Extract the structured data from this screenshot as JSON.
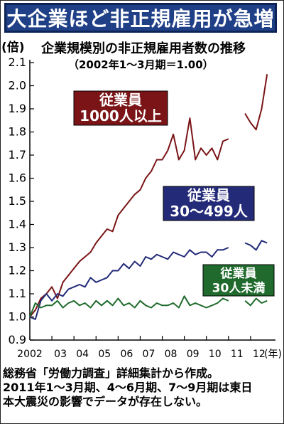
{
  "title": "大企業ほど非正規雇用が急増",
  "chart_data": {
    "type": "line",
    "title": "企業規模別の非正規雇用者数の推移",
    "subtitle": "（2002年1～3月期＝1.00）",
    "ylabel": "(倍)",
    "xlabel": "(年)",
    "ylim": [
      0.9,
      2.1
    ],
    "yticks": [
      "0.9",
      "1.0",
      "1.1",
      "1.2",
      "1.3",
      "1.4",
      "1.5",
      "1.6",
      "1.7",
      "1.8",
      "1.9",
      "2.0",
      "2.1"
    ],
    "xlim": [
      2002,
      2013
    ],
    "xtick_labels": [
      "2002",
      "03",
      "04",
      "05",
      "06",
      "07",
      "08",
      "09",
      "10",
      "11",
      "12"
    ],
    "xtick_values": [
      2002,
      2003,
      2004,
      2005,
      2006,
      2007,
      2008,
      2009,
      2010,
      2011,
      2012
    ],
    "grid": false,
    "series": [
      {
        "name": "従業員1000人以上",
        "label_lines": [
          "従業員",
          "1000人以上"
        ],
        "color": "#7a1416",
        "segments": [
          [
            [
              2002.0,
              1.0
            ],
            [
              2002.25,
              1.03
            ],
            [
              2002.5,
              1.08
            ],
            [
              2002.75,
              1.1
            ],
            [
              2003.0,
              1.13
            ],
            [
              2003.25,
              1.08
            ],
            [
              2003.5,
              1.15
            ],
            [
              2003.75,
              1.18
            ],
            [
              2004.0,
              1.21
            ],
            [
              2004.25,
              1.24
            ],
            [
              2004.5,
              1.26
            ],
            [
              2004.75,
              1.28
            ],
            [
              2005.0,
              1.32
            ],
            [
              2005.25,
              1.35
            ],
            [
              2005.5,
              1.38
            ],
            [
              2005.75,
              1.37
            ],
            [
              2006.0,
              1.44
            ],
            [
              2006.25,
              1.47
            ],
            [
              2006.5,
              1.5
            ],
            [
              2006.75,
              1.53
            ],
            [
              2007.0,
              1.55
            ],
            [
              2007.25,
              1.6
            ],
            [
              2007.5,
              1.63
            ],
            [
              2007.75,
              1.68
            ],
            [
              2008.0,
              1.68
            ],
            [
              2008.25,
              1.72
            ],
            [
              2008.5,
              1.79
            ],
            [
              2008.75,
              1.68
            ],
            [
              2009.0,
              1.72
            ],
            [
              2009.25,
              1.86
            ],
            [
              2009.5,
              1.68
            ],
            [
              2009.75,
              1.73
            ],
            [
              2010.0,
              1.7
            ],
            [
              2010.25,
              1.73
            ],
            [
              2010.5,
              1.68
            ],
            [
              2010.75,
              1.76
            ],
            [
              2011.0,
              1.77
            ]
          ],
          [
            [
              2011.75,
              1.88
            ],
            [
              2012.0,
              1.84
            ],
            [
              2012.25,
              1.81
            ],
            [
              2012.5,
              1.9
            ],
            [
              2012.75,
              2.05
            ]
          ]
        ]
      },
      {
        "name": "従業員30～499人",
        "label_lines": [
          "従業員",
          "30～499人"
        ],
        "color": "#232a78",
        "segments": [
          [
            [
              2002.0,
              1.0
            ],
            [
              2002.25,
              0.99
            ],
            [
              2002.5,
              1.07
            ],
            [
              2002.75,
              1.1
            ],
            [
              2003.0,
              1.07
            ],
            [
              2003.25,
              1.1
            ],
            [
              2003.5,
              1.09
            ],
            [
              2003.75,
              1.12
            ],
            [
              2004.0,
              1.13
            ],
            [
              2004.25,
              1.14
            ],
            [
              2004.5,
              1.13
            ],
            [
              2004.75,
              1.17
            ],
            [
              2005.0,
              1.15
            ],
            [
              2005.25,
              1.16
            ],
            [
              2005.5,
              1.17
            ],
            [
              2005.75,
              1.2
            ],
            [
              2006.0,
              1.2
            ],
            [
              2006.25,
              1.23
            ],
            [
              2006.5,
              1.21
            ],
            [
              2006.75,
              1.24
            ],
            [
              2007.0,
              1.22
            ],
            [
              2007.25,
              1.26
            ],
            [
              2007.5,
              1.25
            ],
            [
              2007.75,
              1.27
            ],
            [
              2008.0,
              1.26
            ],
            [
              2008.25,
              1.25
            ],
            [
              2008.5,
              1.28
            ],
            [
              2008.75,
              1.27
            ],
            [
              2009.0,
              1.26
            ],
            [
              2009.25,
              1.29
            ],
            [
              2009.5,
              1.27
            ],
            [
              2009.75,
              1.28
            ],
            [
              2010.0,
              1.28
            ],
            [
              2010.25,
              1.26
            ],
            [
              2010.5,
              1.29
            ],
            [
              2010.75,
              1.29
            ],
            [
              2011.0,
              1.3
            ]
          ],
          [
            [
              2011.75,
              1.32
            ],
            [
              2012.0,
              1.31
            ],
            [
              2012.25,
              1.29
            ],
            [
              2012.5,
              1.33
            ],
            [
              2012.75,
              1.32
            ]
          ]
        ]
      },
      {
        "name": "従業員30人未満",
        "label_lines": [
          "従業員",
          "30人未満"
        ],
        "color": "#1f6a2c",
        "segments": [
          [
            [
              2002.0,
              1.0
            ],
            [
              2002.25,
              1.06
            ],
            [
              2002.5,
              1.04
            ],
            [
              2002.75,
              1.05
            ],
            [
              2003.0,
              1.05
            ],
            [
              2003.25,
              1.07
            ],
            [
              2003.5,
              1.04
            ],
            [
              2003.75,
              1.06
            ],
            [
              2004.0,
              1.07
            ],
            [
              2004.25,
              1.05
            ],
            [
              2004.5,
              1.06
            ],
            [
              2004.75,
              1.04
            ],
            [
              2005.0,
              1.07
            ],
            [
              2005.25,
              1.05
            ],
            [
              2005.5,
              1.07
            ],
            [
              2005.75,
              1.05
            ],
            [
              2006.0,
              1.08
            ],
            [
              2006.25,
              1.05
            ],
            [
              2006.5,
              1.06
            ],
            [
              2006.75,
              1.04
            ],
            [
              2007.0,
              1.07
            ],
            [
              2007.25,
              1.05
            ],
            [
              2007.5,
              1.04
            ],
            [
              2007.75,
              1.06
            ],
            [
              2008.0,
              1.05
            ],
            [
              2008.25,
              1.05
            ],
            [
              2008.5,
              1.06
            ],
            [
              2008.75,
              1.04
            ],
            [
              2009.0,
              1.09
            ],
            [
              2009.25,
              1.05
            ],
            [
              2009.5,
              1.06
            ],
            [
              2009.75,
              1.05
            ],
            [
              2010.0,
              1.04
            ],
            [
              2010.25,
              1.05
            ],
            [
              2010.5,
              1.06
            ],
            [
              2010.75,
              1.08
            ],
            [
              2011.0,
              1.07
            ]
          ],
          [
            [
              2011.75,
              1.07
            ],
            [
              2012.0,
              1.05
            ],
            [
              2012.25,
              1.08
            ],
            [
              2012.5,
              1.06
            ],
            [
              2012.75,
              1.07
            ]
          ]
        ]
      }
    ]
  },
  "footnote": [
    "総務省「労働力調査」詳細集計から作成。",
    "2011年1～3月期、4～6月期、7～9月期は東日",
    "本大震災の影響でデータが存在しない。"
  ]
}
